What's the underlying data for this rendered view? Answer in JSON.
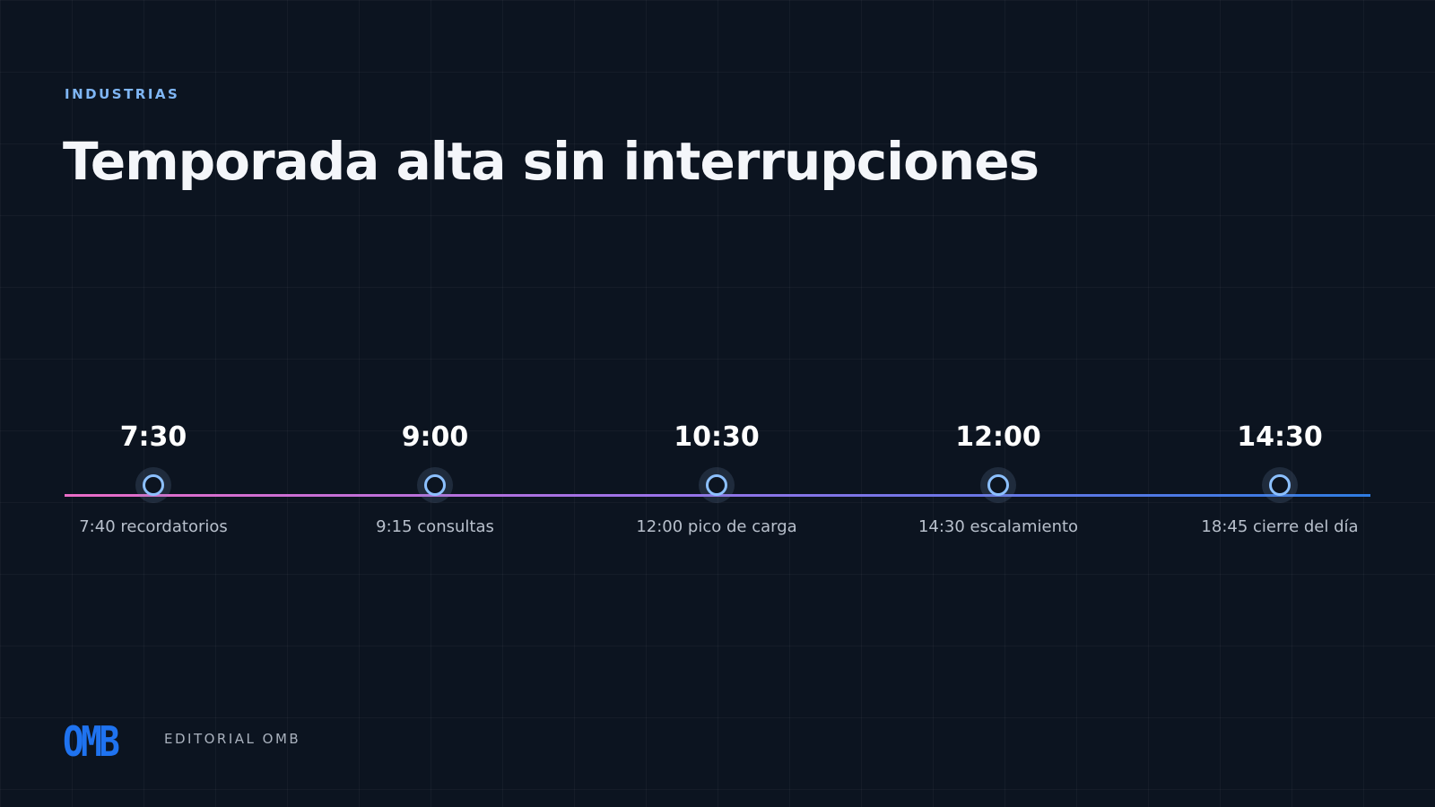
{
  "eyebrow": "INDUSTRIAS",
  "title": "Temporada alta sin interrupciones",
  "timeline": [
    {
      "time": "7:30",
      "label": "7:40 recordatorios"
    },
    {
      "time": "9:00",
      "label": "9:15 consultas"
    },
    {
      "time": "10:30",
      "label": "12:00 pico de carga"
    },
    {
      "time": "12:00",
      "label": "14:30 escalamiento"
    },
    {
      "time": "14:30",
      "label": "18:45 cierre del día"
    }
  ],
  "footer": {
    "logo": "OMB",
    "brand": "EDITORIAL OMB"
  }
}
